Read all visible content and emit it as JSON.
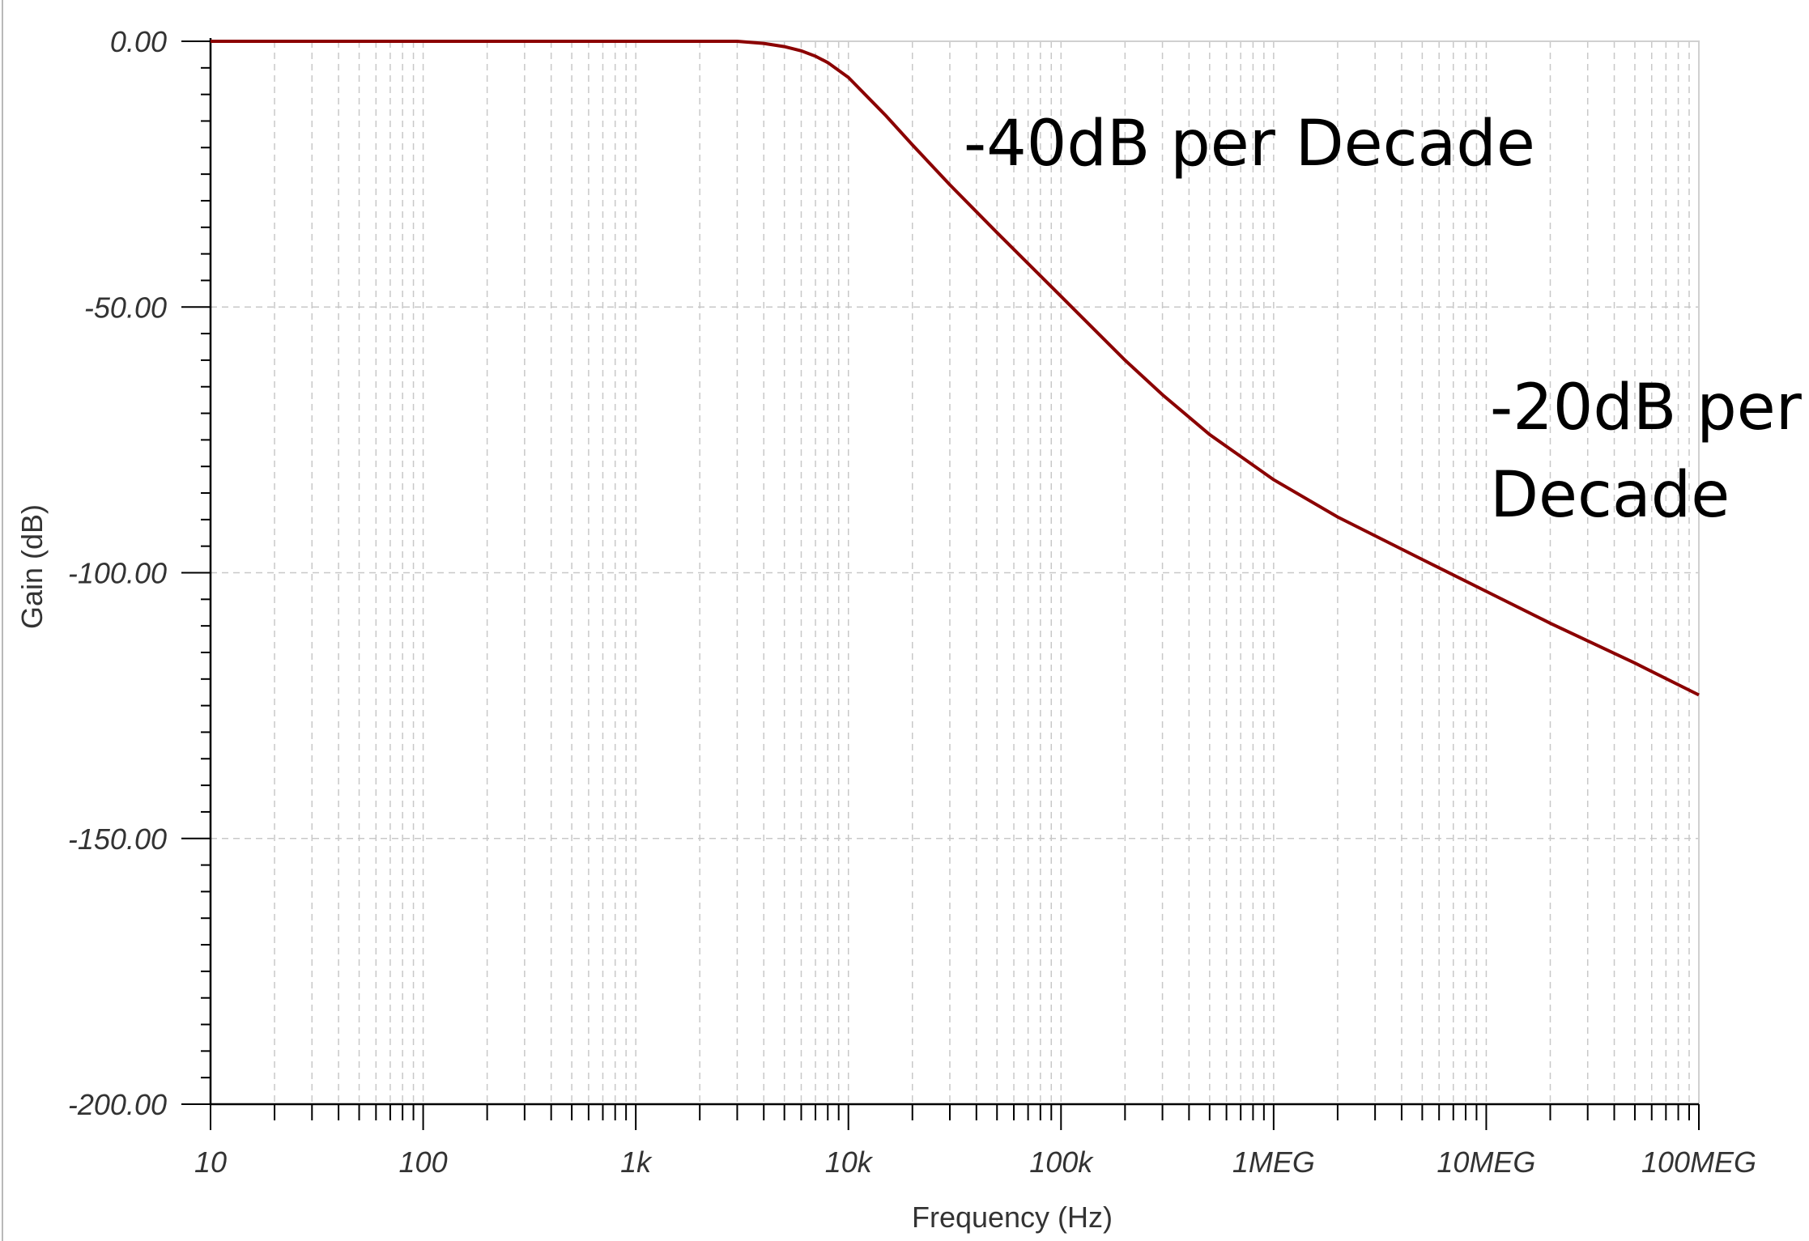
{
  "chart_data": {
    "type": "line",
    "title": "",
    "xlabel": "Frequency (Hz)",
    "ylabel": "Gain (dB)",
    "x_scale": "log",
    "xlim": [
      10,
      100000000
    ],
    "ylim": [
      -200,
      0
    ],
    "x_tick_values": [
      10,
      100,
      1000,
      10000,
      100000,
      1000000,
      10000000,
      100000000
    ],
    "x_tick_labels": [
      "10",
      "100",
      "1k",
      "10k",
      "100k",
      "1MEG",
      "10MEG",
      "100MEG"
    ],
    "y_tick_values": [
      0,
      -50,
      -100,
      -150,
      -200
    ],
    "y_tick_labels": [
      "0.00",
      "-50.00",
      "-100.00",
      "-150.00",
      "-200.00"
    ],
    "grid": true,
    "line_color": "#8b0000",
    "series": [
      {
        "x": [
          10,
          100,
          1000,
          3000,
          4000,
          5000,
          6000,
          7000,
          8000,
          10000,
          15000,
          20000,
          30000,
          50000,
          100000,
          200000,
          300000,
          500000,
          1000000,
          2000000,
          5000000,
          10000000,
          20000000,
          50000000,
          100000000
        ],
        "values": [
          0,
          0,
          0,
          0,
          -0.4,
          -1.0,
          -1.8,
          -2.8,
          -4.0,
          -6.8,
          -14,
          -19.5,
          -27,
          -36,
          -48,
          -60,
          -66.5,
          -74,
          -82.5,
          -89.5,
          -97.5,
          -103.5,
          -109.5,
          -117,
          -123
        ]
      }
    ],
    "annotations": [
      "-40dB per Decade",
      "-20dB per",
      "Decade"
    ]
  }
}
